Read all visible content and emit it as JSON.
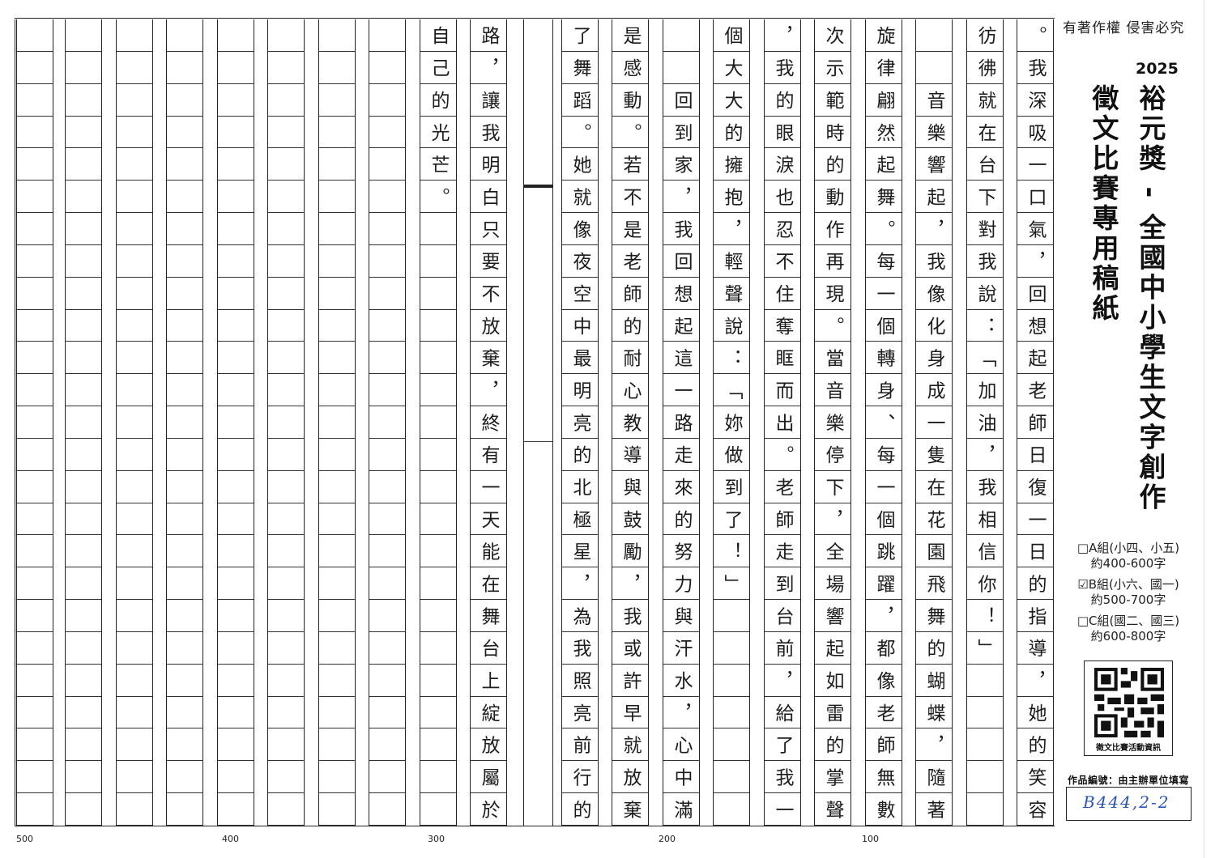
{
  "header": {
    "copyright": "有著作權 侵害必究",
    "year": "2025",
    "title": "裕元獎 - 全國中小學生文字創作",
    "subtitle": "徵文比賽專用稿紙"
  },
  "groups": [
    {
      "label": "□A組(小四、小五)",
      "range": "約400-600字",
      "checked": false
    },
    {
      "label": "☑B組(小六、國一)",
      "range": "約500-700字",
      "checked": true
    },
    {
      "label": "□C組(國二、國三)",
      "range": "約600-800字",
      "checked": false
    }
  ],
  "qr": {
    "caption": "徵文比賽活動資訊"
  },
  "work_number": {
    "label": "作品編號：由主辦單位填寫",
    "value": "B444,2-2"
  },
  "counters": [
    "100",
    "200",
    "300",
    "400",
    "500"
  ],
  "colors": {
    "ink": "#1c1c1c",
    "blue_ink": "#2a55b8",
    "grid": "#222222"
  },
  "essay": {
    "rows_per_column": 25,
    "columns": [
      {
        "text": "。我深吸一口氣，回想起老師日復一日的指導，她的笑容"
      },
      {
        "text": "彷彿就在台下對我說：「加油，我相信你！」"
      },
      {
        "text": "　　音樂響起，我像化身成一隻在花園飛舞的蝴蝶，隨著"
      },
      {
        "text": "旋律翩然起舞。每一個轉身、每一個跳躍，都像老師無數"
      },
      {
        "text": "次示範時的動作再現。當音樂停下，全場響起如雷的掌聲"
      },
      {
        "text": "，我的眼淚也忍不住奪眶而出。老師走到台前，給了我一"
      },
      {
        "text": "個大大的擁抱，輕聲說：「妳做到了！」"
      },
      {
        "text": "　　回到家，我回想起這一路走來的努力與汗水，心中滿"
      },
      {
        "text": "是感動。若不是老師的耐心教導與鼓勵，我或許早就放棄"
      },
      {
        "text": "了舞蹈。她就像夜空中最明亮的北極星，為我照亮前行的"
      },
      {
        "text": "路，讓我明白只要不放棄，終有一天能在舞台上綻放屬於"
      },
      {
        "text": "自己的光芒。"
      },
      {
        "text": ""
      },
      {
        "text": ""
      },
      {
        "text": ""
      },
      {
        "text": ""
      },
      {
        "text": ""
      },
      {
        "text": ""
      },
      {
        "text": ""
      },
      {
        "text": ""
      }
    ]
  }
}
